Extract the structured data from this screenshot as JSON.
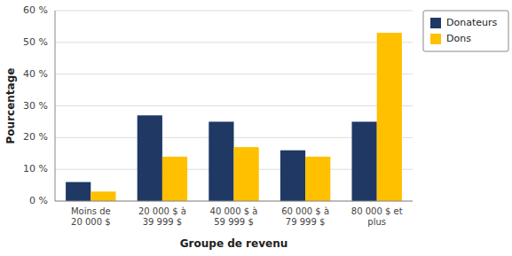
{
  "chart_data": {
    "type": "bar",
    "categories": [
      "Moins de\n20 000 $",
      "20 000 $ à\n39 999 $",
      "40 000 $ à\n59 999 $",
      "60 000 $ à\n79 999 $",
      "80 000 $ et\nplus"
    ],
    "series": [
      {
        "name": "Donateurs",
        "color": "#1F3864",
        "values": [
          6,
          27,
          25,
          16,
          25
        ]
      },
      {
        "name": "Dons",
        "color": "#FFC000",
        "values": [
          3,
          14,
          17,
          14,
          53
        ]
      }
    ],
    "xlabel": "Groupe de revenu",
    "ylabel": "Pourcentage",
    "ylim": [
      0,
      60
    ],
    "yticks": [
      {
        "value": 0,
        "label": "0 %"
      },
      {
        "value": 10,
        "label": "10 %"
      },
      {
        "value": 20,
        "label": "20 %"
      },
      {
        "value": 30,
        "label": "30 %"
      },
      {
        "value": 40,
        "label": "40 %"
      },
      {
        "value": 50,
        "label": "50 %"
      },
      {
        "value": 60,
        "label": "60 %"
      }
    ],
    "grid": true,
    "legend": "upper right"
  }
}
